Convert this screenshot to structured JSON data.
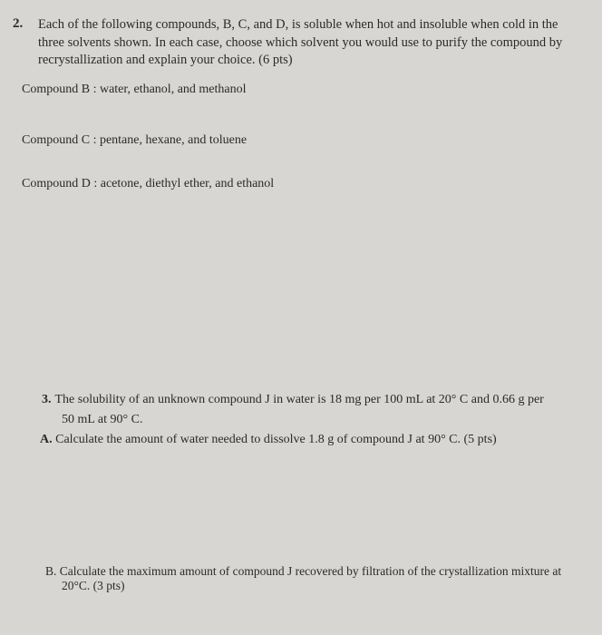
{
  "q2": {
    "number": "2.",
    "text": "Each of the following compounds, B, C, and D, is soluble when hot and insoluble when cold in the three solvents shown. In each case, choose which solvent you would use to purify the compound by recrystallization and explain your choice. (6 pts)",
    "compounds": {
      "b": "Compound B : water, ethanol, and methanol",
      "c": "Compound C : pentane, hexane, and toluene",
      "d": "Compound D : acetone, diethyl ether, and ethanol"
    }
  },
  "q3": {
    "number": "3.",
    "text_line1": "The solubility of an unknown compound J in water is 18 mg per 100 mL at 20° C and 0.66 g per",
    "text_line2": "50 mL at 90° C.",
    "partA": {
      "label": "A.",
      "text": "Calculate the amount of water needed to dissolve 1.8 g of compound J at 90° C. (5 pts)"
    },
    "partB": {
      "line1": "B. Calculate the maximum amount of compound J recovered by filtration of the crystallization mixture at",
      "line2": "20°C. (3 pts)"
    }
  }
}
